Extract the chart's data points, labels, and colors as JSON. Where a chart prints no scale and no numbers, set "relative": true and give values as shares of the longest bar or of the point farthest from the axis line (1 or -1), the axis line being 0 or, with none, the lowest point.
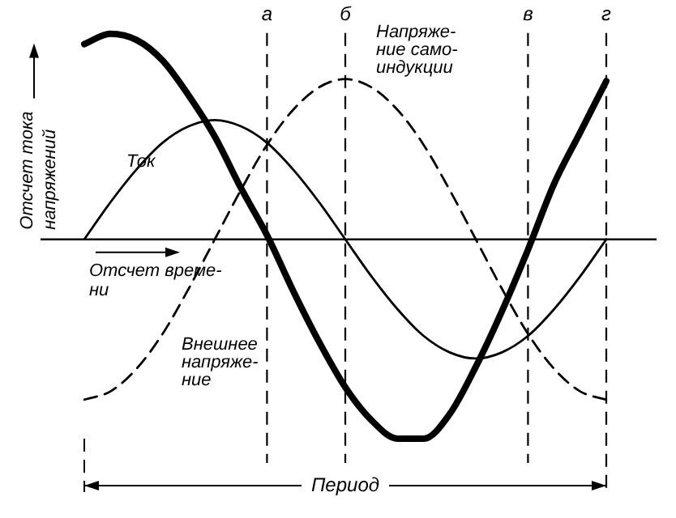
{
  "chart_data": {
    "type": "line",
    "relative": true,
    "ylabel": "Отсчет тока напряжений",
    "xlabel": "Отсчет време-\nни",
    "grid": "x",
    "legend": false,
    "marker": "none",
    "categories": [
      null,
      null,
      null,
      null,
      null,
      null,
      null,
      "а",
      null,
      null,
      "б",
      null,
      null,
      null,
      null,
      null,
      null,
      "в",
      null,
      null,
      "г"
    ],
    "series": [
      {
        "color": "#000000",
        "line_style": "solid",
        "values": [
          0,
          0.18,
          0.34,
          0.47,
          0.55,
          0.58,
          0.55,
          0.47,
          0.34,
          0.18,
          0,
          -0.18,
          -0.34,
          -0.47,
          -0.55,
          -0.58,
          -0.55,
          -0.47,
          -0.34,
          -0.18,
          0
        ]
      },
      {
        "color": "#000000",
        "line_style": "dashed",
        "values": [
          -0.78,
          -0.74,
          -0.63,
          -0.46,
          -0.24,
          0,
          0.24,
          0.46,
          0.63,
          0.74,
          0.78,
          0.74,
          0.63,
          0.46,
          0.24,
          0,
          -0.24,
          -0.46,
          -0.63,
          -0.74,
          -0.78
        ]
      },
      {
        "color": "#000000",
        "line_style": "solid",
        "values": [
          0.95,
          1,
          0.97,
          0.87,
          0.7,
          0.5,
          0.25,
          0.02,
          -0.25,
          -0.5,
          -0.72,
          -0.88,
          -0.97,
          -0.97,
          -0.85,
          -0.62,
          -0.35,
          -0.05,
          0.27,
          0.52,
          0.77
        ]
      }
    ],
    "annotations": [
      "Ток",
      "Напряже-\nние само-\nиндукции",
      "Внешнее\nнапряже-\nние",
      "Период"
    ]
  }
}
